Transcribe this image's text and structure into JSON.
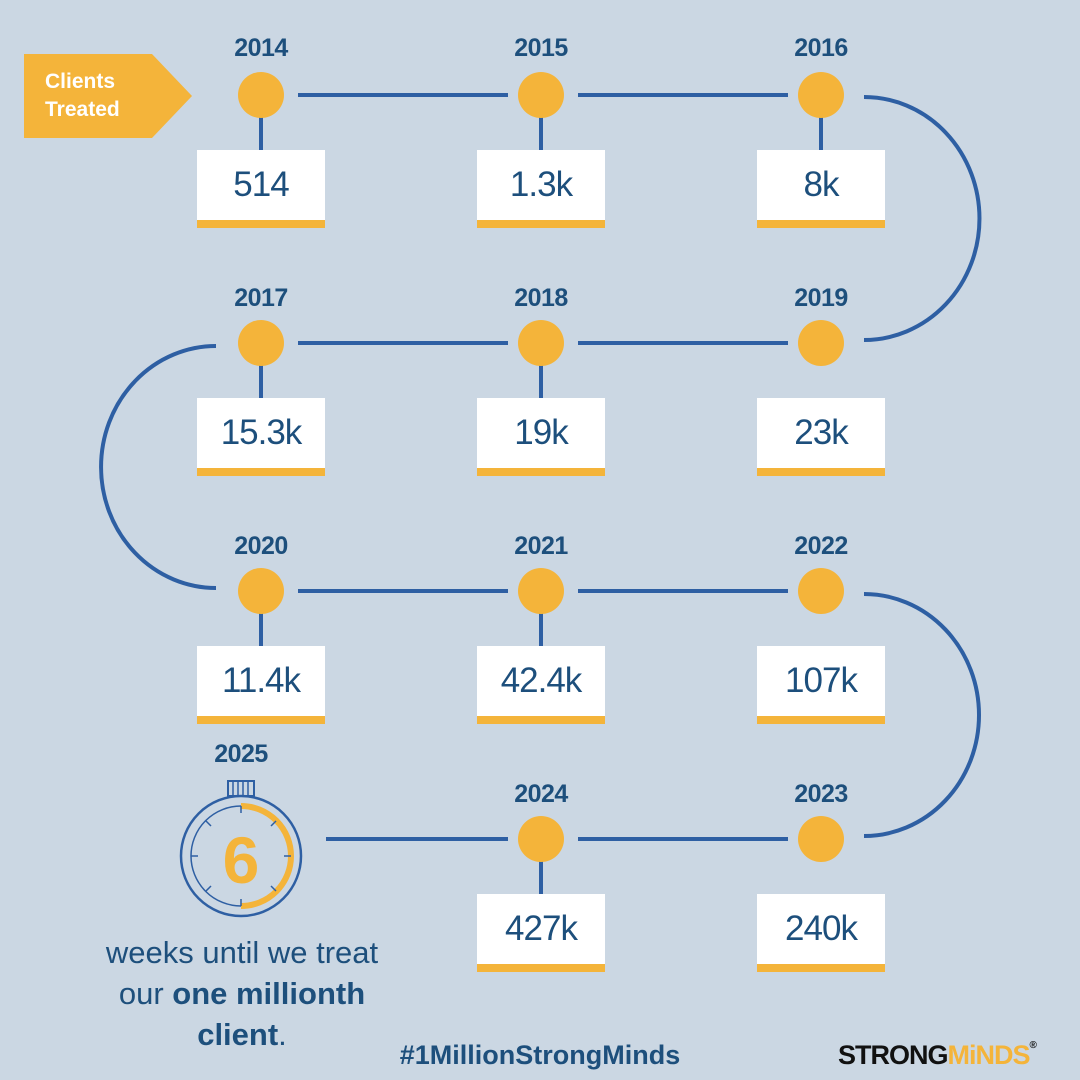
{
  "label": "Clients Treated",
  "label_lines": [
    "Clients",
    "Treated"
  ],
  "milestones": [
    {
      "year": "2014",
      "value": "514"
    },
    {
      "year": "2015",
      "value": "1.3k"
    },
    {
      "year": "2016",
      "value": "8k"
    },
    {
      "year": "2017",
      "value": "15.3k"
    },
    {
      "year": "2018",
      "value": "19k"
    },
    {
      "year": "2019",
      "value": "23k"
    },
    {
      "year": "2020",
      "value": "11.4k"
    },
    {
      "year": "2021",
      "value": "42.4k"
    },
    {
      "year": "2022",
      "value": "107k"
    },
    {
      "year": "2023",
      "value": "240k"
    },
    {
      "year": "2024",
      "value": "427k"
    }
  ],
  "countdown": {
    "year": "2025",
    "number": "6",
    "text_line1": "weeks until we treat",
    "text_pre": "our ",
    "text_bold1": "one millionth",
    "text_bold2": "client",
    "text_post": "."
  },
  "hashtag": "#1MillionStrongMinds",
  "logo": {
    "strong": "STRONG",
    "minds": "MiNDS",
    "reg": "®"
  },
  "colors": {
    "background": "#cbd7e3",
    "line": "#2e5fa3",
    "dot": "#f4b43a",
    "text": "#1d4f7c",
    "accent": "#f4b43a"
  }
}
